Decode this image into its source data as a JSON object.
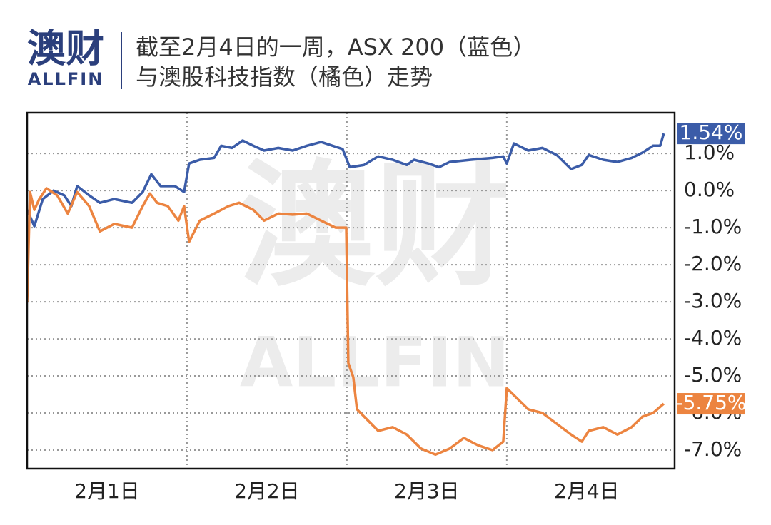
{
  "logo": {
    "cn": "澳财",
    "en": "ALLFIN"
  },
  "chart_data": {
    "type": "line",
    "title": [
      "截至2月4日的一周，ASX 200（蓝色）",
      "与澳股科技指数（橘色）走势"
    ],
    "xlim": [
      0,
      4.05
    ],
    "xticks": [
      {
        "value": 0.5,
        "label": "2月1日"
      },
      {
        "value": 1.5,
        "label": "2月2日"
      },
      {
        "value": 2.5,
        "label": "2月3日"
      },
      {
        "value": 3.5,
        "label": "2月4日"
      }
    ],
    "xgrid": [
      1,
      2,
      3
    ],
    "ylim": [
      -7.5,
      2.1
    ],
    "yticks": [
      {
        "value": 1,
        "label": "1.0%"
      },
      {
        "value": 0,
        "label": "0.0%"
      },
      {
        "value": -1,
        "label": "-1.0%"
      },
      {
        "value": -2,
        "label": "-2.0%"
      },
      {
        "value": -3,
        "label": "-3.0%"
      },
      {
        "value": -4,
        "label": "-4.0%"
      },
      {
        "value": -5,
        "label": "-5.0%"
      },
      {
        "value": -6,
        "label": "-6.0%"
      },
      {
        "value": -7,
        "label": "-7.0%"
      }
    ],
    "grid": true,
    "series": [
      {
        "color": "#3b5ca8",
        "end_label": "1.54%",
        "x": [
          0,
          0.045,
          0.098,
          0.165,
          0.232,
          0.277,
          0.313,
          0.388,
          0.455,
          0.545,
          0.656,
          0.723,
          0.777,
          0.835,
          0.924,
          0.982,
          1.013,
          1.08,
          1.17,
          1.214,
          1.281,
          1.348,
          1.415,
          1.482,
          1.571,
          1.661,
          1.75,
          1.839,
          1.973,
          2.018,
          2.107,
          2.196,
          2.286,
          2.375,
          2.42,
          2.509,
          2.576,
          2.643,
          2.777,
          2.911,
          2.978,
          3.0,
          3.045,
          3.134,
          3.223,
          3.313,
          3.402,
          3.469,
          3.513,
          3.603,
          3.692,
          3.781,
          3.848,
          3.915,
          3.96,
          3.982
        ],
        "values": [
          -0.52,
          -0.96,
          -0.23,
          0,
          -0.13,
          -0.42,
          0.12,
          -0.13,
          -0.33,
          -0.23,
          -0.33,
          -0.04,
          0.44,
          0.12,
          0.12,
          -0.04,
          0.73,
          0.83,
          0.88,
          1.21,
          1.15,
          1.35,
          1.21,
          1.08,
          1.15,
          1.08,
          1.21,
          1.31,
          1.12,
          0.63,
          0.69,
          0.92,
          0.83,
          0.69,
          0.83,
          0.73,
          0.63,
          0.77,
          0.83,
          0.88,
          0.92,
          0.73,
          1.27,
          1.08,
          1.15,
          0.96,
          0.58,
          0.69,
          0.96,
          0.83,
          0.77,
          0.88,
          1.02,
          1.21,
          1.21,
          1.54
        ]
      },
      {
        "color": "#ec8440",
        "end_label": "-5.75%",
        "x": [
          0,
          0.018,
          0.045,
          0.076,
          0.121,
          0.188,
          0.254,
          0.313,
          0.388,
          0.455,
          0.545,
          0.656,
          0.723,
          0.768,
          0.813,
          0.88,
          0.946,
          0.982,
          1.013,
          1.08,
          1.17,
          1.259,
          1.326,
          1.415,
          1.482,
          1.571,
          1.661,
          1.75,
          1.839,
          1.929,
          1.996,
          2.009,
          2.04,
          2.063,
          2.129,
          2.196,
          2.286,
          2.375,
          2.464,
          2.554,
          2.643,
          2.732,
          2.821,
          2.911,
          2.978,
          3.0,
          3.045,
          3.134,
          3.223,
          3.313,
          3.402,
          3.469,
          3.513,
          3.603,
          3.692,
          3.781,
          3.848,
          3.915,
          3.982
        ],
        "values": [
          -3.02,
          -0.04,
          -0.52,
          -0.23,
          0.06,
          -0.13,
          -0.62,
          -0.04,
          -0.42,
          -1.1,
          -0.9,
          -1.0,
          -0.42,
          -0.08,
          -0.33,
          -0.42,
          -0.81,
          -0.42,
          -1.38,
          -0.81,
          -0.62,
          -0.42,
          -0.33,
          -0.52,
          -0.81,
          -0.62,
          -0.65,
          -0.62,
          -0.81,
          -1.0,
          -1.0,
          -4.65,
          -5.04,
          -5.9,
          -6.19,
          -6.48,
          -6.38,
          -6.58,
          -6.96,
          -7.12,
          -6.96,
          -6.67,
          -6.87,
          -7.0,
          -6.77,
          -5.33,
          -5.52,
          -5.9,
          -6.0,
          -6.29,
          -6.58,
          -6.77,
          -6.48,
          -6.38,
          -6.58,
          -6.38,
          -6.1,
          -6.0,
          -5.75
        ]
      }
    ]
  }
}
